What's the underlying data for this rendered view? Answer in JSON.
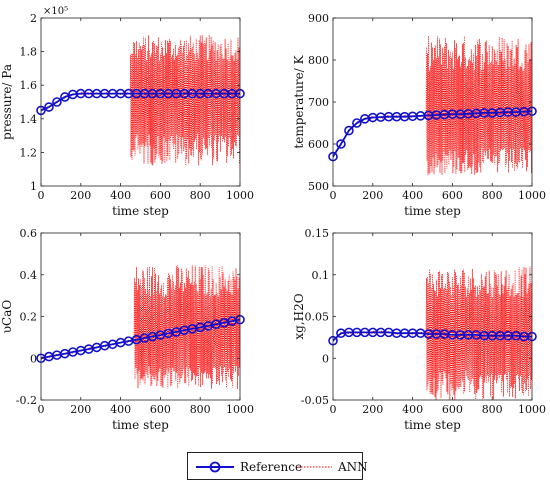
{
  "chart_data": [
    {
      "type": "line",
      "ylabel": "pressure/ Pa",
      "xlabel": "time step",
      "exponent_label": "×10⁵",
      "xlim": [
        0,
        1000
      ],
      "ylim": [
        1.0,
        2.0
      ],
      "xticks": [
        0,
        200,
        400,
        600,
        800,
        1000
      ],
      "yticks": [
        1,
        1.2,
        1.4,
        1.6,
        1.8,
        2
      ],
      "ytick_labels": [
        "1",
        "1.2",
        "1.4",
        "1.6",
        "1.8",
        "2"
      ],
      "grid": false,
      "reference": {
        "x": [
          0,
          40,
          80,
          120,
          160,
          200,
          240,
          280,
          320,
          360,
          400,
          440,
          480,
          520,
          560,
          600,
          640,
          680,
          720,
          760,
          800,
          840,
          880,
          920,
          960,
          1000
        ],
        "y": [
          1.45,
          1.47,
          1.5,
          1.53,
          1.545,
          1.55,
          1.55,
          1.55,
          1.55,
          1.55,
          1.55,
          1.55,
          1.55,
          1.55,
          1.55,
          1.55,
          1.55,
          1.55,
          1.55,
          1.55,
          1.55,
          1.55,
          1.55,
          1.55,
          1.55,
          1.55
        ]
      },
      "ann": {
        "stable_until": 450,
        "osc_low": 1.12,
        "osc_high": 1.9,
        "base": 1.55
      }
    },
    {
      "type": "line",
      "ylabel": "temperature/ K",
      "xlabel": "time step",
      "xlim": [
        0,
        1000
      ],
      "ylim": [
        500,
        900
      ],
      "xticks": [
        0,
        200,
        400,
        600,
        800,
        1000
      ],
      "yticks": [
        500,
        600,
        700,
        800,
        900
      ],
      "ytick_labels": [
        "500",
        "600",
        "700",
        "800",
        "900"
      ],
      "grid": false,
      "reference": {
        "x": [
          0,
          40,
          80,
          120,
          160,
          200,
          240,
          280,
          320,
          360,
          400,
          440,
          480,
          520,
          560,
          600,
          640,
          680,
          720,
          760,
          800,
          840,
          880,
          920,
          960,
          1000
        ],
        "y": [
          570,
          600,
          632,
          650,
          660,
          663,
          664,
          665,
          665,
          665,
          666,
          667,
          668,
          669,
          670,
          671,
          671,
          672,
          673,
          674,
          674,
          675,
          676,
          676,
          677,
          678
        ]
      },
      "ann": {
        "stable_until": 470,
        "osc_low": 525,
        "osc_high": 860,
        "base": 670
      }
    },
    {
      "type": "line",
      "ylabel": "υCaO",
      "xlabel": "time step",
      "xlim": [
        0,
        1000
      ],
      "ylim": [
        -0.2,
        0.6
      ],
      "xticks": [
        0,
        200,
        400,
        600,
        800,
        1000
      ],
      "yticks": [
        -0.2,
        0,
        0.2,
        0.4,
        0.6
      ],
      "ytick_labels": [
        "-0.2",
        "0",
        "0.2",
        "0.4",
        "0.6"
      ],
      "grid": false,
      "reference": {
        "x": [
          0,
          40,
          80,
          120,
          160,
          200,
          240,
          280,
          320,
          360,
          400,
          440,
          480,
          520,
          560,
          600,
          640,
          680,
          720,
          760,
          800,
          840,
          880,
          920,
          960,
          1000
        ],
        "y": [
          0.0,
          0.008,
          0.015,
          0.022,
          0.03,
          0.037,
          0.044,
          0.052,
          0.06,
          0.067,
          0.075,
          0.082,
          0.089,
          0.097,
          0.104,
          0.111,
          0.119,
          0.126,
          0.134,
          0.141,
          0.148,
          0.155,
          0.163,
          0.17,
          0.178,
          0.185
        ]
      },
      "ann": {
        "stable_until": 470,
        "osc_low": -0.15,
        "osc_high": 0.45,
        "base": 0.1
      }
    },
    {
      "type": "line",
      "ylabel": "xg,H2O",
      "xlabel": "time step",
      "xlim": [
        0,
        1000
      ],
      "ylim": [
        -0.05,
        0.15
      ],
      "xticks": [
        0,
        200,
        400,
        600,
        800,
        1000
      ],
      "yticks": [
        -0.05,
        0,
        0.05,
        0.1,
        0.15
      ],
      "ytick_labels": [
        "-0.05",
        "0",
        "0.05",
        "0.1",
        "0.15"
      ],
      "grid": false,
      "reference": {
        "x": [
          0,
          40,
          80,
          120,
          160,
          200,
          240,
          280,
          320,
          360,
          400,
          440,
          480,
          520,
          560,
          600,
          640,
          680,
          720,
          760,
          800,
          840,
          880,
          920,
          960,
          1000
        ],
        "y": [
          0.021,
          0.03,
          0.031,
          0.031,
          0.031,
          0.031,
          0.031,
          0.031,
          0.03,
          0.03,
          0.03,
          0.03,
          0.029,
          0.029,
          0.029,
          0.028,
          0.028,
          0.028,
          0.028,
          0.027,
          0.027,
          0.027,
          0.027,
          0.027,
          0.026,
          0.026
        ]
      },
      "ann": {
        "stable_until": 470,
        "osc_low": -0.05,
        "osc_high": 0.11,
        "base": 0.028
      }
    }
  ],
  "legend": {
    "reference_label": "Reference",
    "ann_label": "ANN",
    "placement": "bottom-center"
  },
  "colors": {
    "reference": "#1010cc",
    "ann": "#ff0000",
    "axis": "#222222"
  }
}
